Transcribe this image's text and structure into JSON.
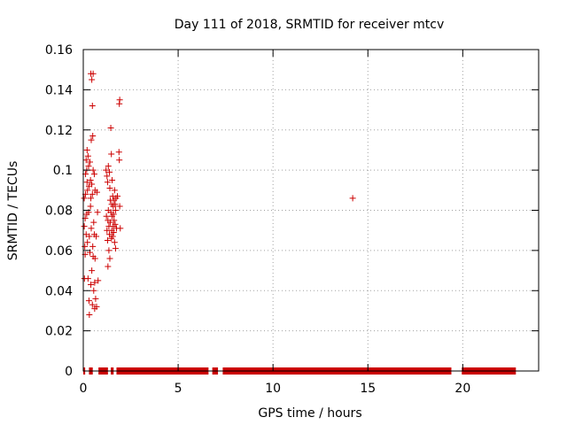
{
  "chart_data": {
    "type": "scatter",
    "title": "Day 111 of 2018, SRMTID for receiver mtcv",
    "xlabel": "GPS time / hours",
    "ylabel": "SRMTID / TECUs",
    "xlim": [
      0,
      24
    ],
    "ylim": [
      0,
      0.16
    ],
    "x_ticks": [
      0,
      5,
      10,
      15,
      20
    ],
    "x_tick_labels": [
      "0",
      "5",
      "10",
      "15",
      "20"
    ],
    "y_ticks": [
      0,
      0.02,
      0.04,
      0.06,
      0.08,
      0.1,
      0.12,
      0.14,
      0.16
    ],
    "y_tick_labels": [
      "0",
      "0.02",
      "0.04",
      "0.06",
      "0.08",
      "0.1",
      "0.12",
      "0.14",
      "0.16"
    ],
    "grid": true,
    "marker": "plus",
    "color": "#cc0000",
    "series": [
      {
        "name": "SRMTID",
        "points": [
          [
            0.05,
            0.086
          ],
          [
            0.05,
            0.072
          ],
          [
            0.06,
            0.046
          ],
          [
            0.08,
            0.062
          ],
          [
            0.1,
            0.076
          ],
          [
            0.1,
            0.058
          ],
          [
            0.12,
            0.098
          ],
          [
            0.12,
            0.088
          ],
          [
            0.15,
            0.105
          ],
          [
            0.15,
            0.068
          ],
          [
            0.18,
            0.1
          ],
          [
            0.18,
            0.078
          ],
          [
            0.2,
            0.11
          ],
          [
            0.2,
            0.094
          ],
          [
            0.22,
            0.09
          ],
          [
            0.22,
            0.064
          ],
          [
            0.25,
            0.107
          ],
          [
            0.25,
            0.046
          ],
          [
            0.28,
            0.102
          ],
          [
            0.28,
            0.079
          ],
          [
            0.3,
            0.092
          ],
          [
            0.3,
            0.035
          ],
          [
            0.32,
            0.067
          ],
          [
            0.32,
            0.028
          ],
          [
            0.35,
            0.104
          ],
          [
            0.35,
            0.059
          ],
          [
            0.38,
            0.095
          ],
          [
            0.38,
            0.082
          ],
          [
            0.4,
            0.148
          ],
          [
            0.4,
            0.086
          ],
          [
            0.4,
            0.043
          ],
          [
            0.42,
            0.115
          ],
          [
            0.42,
            0.071
          ],
          [
            0.45,
            0.145
          ],
          [
            0.45,
            0.093
          ],
          [
            0.45,
            0.05
          ],
          [
            0.48,
            0.132
          ],
          [
            0.48,
            0.088
          ],
          [
            0.48,
            0.033
          ],
          [
            0.5,
            0.117
          ],
          [
            0.5,
            0.062
          ],
          [
            0.52,
            0.148
          ],
          [
            0.52,
            0.1
          ],
          [
            0.52,
            0.057
          ],
          [
            0.55,
            0.074
          ],
          [
            0.55,
            0.04
          ],
          [
            0.58,
            0.098
          ],
          [
            0.58,
            0.068
          ],
          [
            0.6,
            0.044
          ],
          [
            0.6,
            0.031
          ],
          [
            0.62,
            0.09
          ],
          [
            0.62,
            0.056
          ],
          [
            0.65,
            0.036
          ],
          [
            0.68,
            0.067
          ],
          [
            0.7,
            0.032
          ],
          [
            0.72,
            0.089
          ],
          [
            0.75,
            0.079
          ],
          [
            0.78,
            0.045
          ],
          [
            1.2,
            0.1
          ],
          [
            1.22,
            0.077
          ],
          [
            1.25,
            0.097
          ],
          [
            1.25,
            0.07
          ],
          [
            1.28,
            0.094
          ],
          [
            1.28,
            0.065
          ],
          [
            1.3,
            0.075
          ],
          [
            1.3,
            0.052
          ],
          [
            1.32,
            0.102
          ],
          [
            1.32,
            0.08
          ],
          [
            1.35,
            0.072
          ],
          [
            1.35,
            0.06
          ],
          [
            1.38,
            0.099
          ],
          [
            1.38,
            0.068
          ],
          [
            1.4,
            0.091
          ],
          [
            1.4,
            0.056
          ],
          [
            1.42,
            0.085
          ],
          [
            1.42,
            0.074
          ],
          [
            1.45,
            0.121
          ],
          [
            1.45,
            0.079
          ],
          [
            1.48,
            0.108
          ],
          [
            1.48,
            0.066
          ],
          [
            1.5,
            0.083
          ],
          [
            1.5,
            0.07
          ],
          [
            1.52,
            0.095
          ],
          [
            1.52,
            0.077
          ],
          [
            1.55,
            0.087
          ],
          [
            1.55,
            0.067
          ],
          [
            1.58,
            0.082
          ],
          [
            1.58,
            0.072
          ],
          [
            1.6,
            0.078
          ],
          [
            1.6,
            0.069
          ],
          [
            1.62,
            0.085
          ],
          [
            1.62,
            0.075
          ],
          [
            1.65,
            0.09
          ],
          [
            1.65,
            0.064
          ],
          [
            1.68,
            0.083
          ],
          [
            1.68,
            0.073
          ],
          [
            1.7,
            0.08
          ],
          [
            1.7,
            0.061
          ],
          [
            1.72,
            0.086
          ],
          [
            1.75,
            0.071
          ],
          [
            1.8,
            0.087
          ],
          [
            1.88,
            0.109
          ],
          [
            1.9,
            0.133
          ],
          [
            1.9,
            0.105
          ],
          [
            1.92,
            0.135
          ],
          [
            1.92,
            0.082
          ],
          [
            1.95,
            0.071
          ],
          [
            14.2,
            0.086
          ]
        ],
        "zero_segments_hours": [
          [
            0.0,
            0.1
          ],
          [
            0.3,
            0.5
          ],
          [
            0.8,
            1.3
          ],
          [
            1.45,
            1.6
          ],
          [
            1.75,
            6.6
          ],
          [
            6.8,
            7.1
          ],
          [
            7.35,
            19.4
          ],
          [
            19.95,
            22.8
          ]
        ]
      }
    ]
  }
}
